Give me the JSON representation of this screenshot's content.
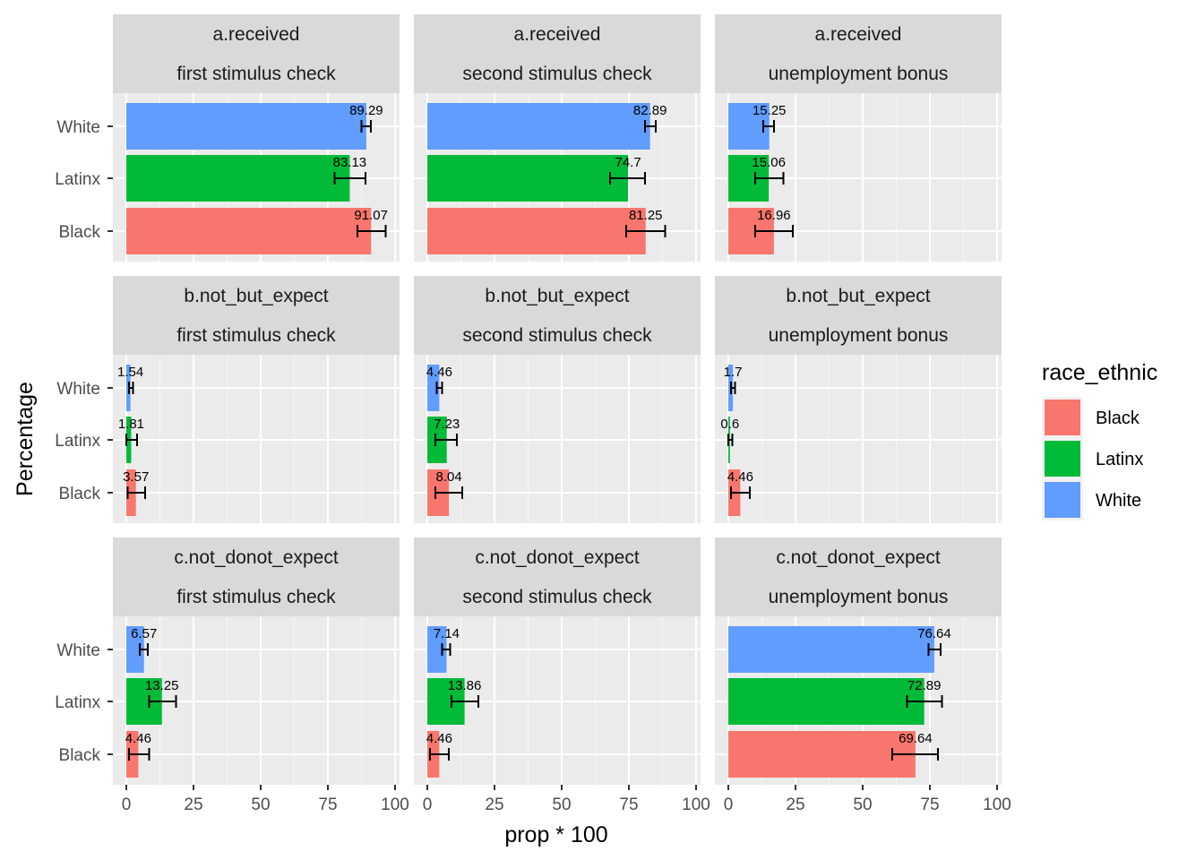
{
  "chart_data": {
    "type": "bar",
    "orientation": "horizontal",
    "facet_rows": [
      "a.received",
      "b.not_but_expect",
      "c.not_donot_expect"
    ],
    "facet_cols": [
      "first stimulus check",
      "second stimulus check",
      "unemployment bonus"
    ],
    "categories": [
      "White",
      "Latinx",
      "Black"
    ],
    "xlabel": "prop * 100",
    "ylabel": "Percentage",
    "xlim": [
      0,
      100
    ],
    "xticks": [
      "0",
      "25",
      "50",
      "75",
      "100"
    ],
    "grid": true,
    "legend": {
      "title": "race_ethnic",
      "position": "right",
      "items": [
        {
          "name": "Black",
          "color": "#F8766D"
        },
        {
          "name": "Latinx",
          "color": "#00BA38"
        },
        {
          "name": "White",
          "color": "#619CFF"
        }
      ]
    },
    "colors": {
      "White": "#619CFF",
      "Latinx": "#00BA38",
      "Black": "#F8766D"
    },
    "panels": [
      {
        "row": "a.received",
        "col": "first stimulus check",
        "bars": [
          {
            "group": "White",
            "value": 89.29,
            "label": "89.29",
            "lo": 87.5,
            "hi": 91.0
          },
          {
            "group": "Latinx",
            "value": 83.13,
            "label": "83.13",
            "lo": 77.5,
            "hi": 89.0
          },
          {
            "group": "Black",
            "value": 91.07,
            "label": "91.07",
            "lo": 86.0,
            "hi": 96.5
          }
        ]
      },
      {
        "row": "a.received",
        "col": "second stimulus check",
        "bars": [
          {
            "group": "White",
            "value": 82.89,
            "label": "82.89",
            "lo": 81.0,
            "hi": 85.0
          },
          {
            "group": "Latinx",
            "value": 74.7,
            "label": "74.7",
            "lo": 68.0,
            "hi": 81.0
          },
          {
            "group": "Black",
            "value": 81.25,
            "label": "81.25",
            "lo": 74.0,
            "hi": 88.5
          }
        ]
      },
      {
        "row": "a.received",
        "col": "unemployment bonus",
        "bars": [
          {
            "group": "White",
            "value": 15.25,
            "label": "15.25",
            "lo": 13.0,
            "hi": 17.0
          },
          {
            "group": "Latinx",
            "value": 15.06,
            "label": "15.06",
            "lo": 10.0,
            "hi": 20.5
          },
          {
            "group": "Black",
            "value": 16.96,
            "label": "16.96",
            "lo": 10.0,
            "hi": 24.0
          }
        ]
      },
      {
        "row": "b.not_but_expect",
        "col": "first stimulus check",
        "bars": [
          {
            "group": "White",
            "value": 1.54,
            "label": "1.54",
            "lo": 1.0,
            "hi": 2.5
          },
          {
            "group": "Latinx",
            "value": 1.81,
            "label": "1.81",
            "lo": 0.0,
            "hi": 4.0
          },
          {
            "group": "Black",
            "value": 3.57,
            "label": "3.57",
            "lo": 0.5,
            "hi": 7.0
          }
        ]
      },
      {
        "row": "b.not_but_expect",
        "col": "second stimulus check",
        "bars": [
          {
            "group": "White",
            "value": 4.46,
            "label": "4.46",
            "lo": 3.5,
            "hi": 5.5
          },
          {
            "group": "Latinx",
            "value": 7.23,
            "label": "7.23",
            "lo": 3.0,
            "hi": 11.0
          },
          {
            "group": "Black",
            "value": 8.04,
            "label": "8.04",
            "lo": 3.0,
            "hi": 13.0
          }
        ]
      },
      {
        "row": "b.not_but_expect",
        "col": "unemployment bonus",
        "bars": [
          {
            "group": "White",
            "value": 1.7,
            "label": "1.7",
            "lo": 1.0,
            "hi": 2.5
          },
          {
            "group": "Latinx",
            "value": 0.6,
            "label": "0.6",
            "lo": 0.0,
            "hi": 1.5
          },
          {
            "group": "Black",
            "value": 4.46,
            "label": "4.46",
            "lo": 1.0,
            "hi": 8.0
          }
        ]
      },
      {
        "row": "c.not_donot_expect",
        "col": "first stimulus check",
        "bars": [
          {
            "group": "White",
            "value": 6.57,
            "label": "6.57",
            "lo": 5.0,
            "hi": 8.0
          },
          {
            "group": "Latinx",
            "value": 13.25,
            "label": "13.25",
            "lo": 8.5,
            "hi": 18.5
          },
          {
            "group": "Black",
            "value": 4.46,
            "label": "4.46",
            "lo": 1.0,
            "hi": 8.5
          }
        ]
      },
      {
        "row": "c.not_donot_expect",
        "col": "second stimulus check",
        "bars": [
          {
            "group": "White",
            "value": 7.14,
            "label": "7.14",
            "lo": 5.5,
            "hi": 8.5
          },
          {
            "group": "Latinx",
            "value": 13.86,
            "label": "13.86",
            "lo": 9.0,
            "hi": 19.0
          },
          {
            "group": "Black",
            "value": 4.46,
            "label": "4.46",
            "lo": 1.0,
            "hi": 8.0
          }
        ]
      },
      {
        "row": "c.not_donot_expect",
        "col": "unemployment bonus",
        "bars": [
          {
            "group": "White",
            "value": 76.64,
            "label": "76.64",
            "lo": 74.5,
            "hi": 79.0
          },
          {
            "group": "Latinx",
            "value": 72.89,
            "label": "72.89",
            "lo": 66.5,
            "hi": 79.5
          },
          {
            "group": "Black",
            "value": 69.64,
            "label": "69.64",
            "lo": 61.0,
            "hi": 78.0
          }
        ]
      }
    ]
  }
}
